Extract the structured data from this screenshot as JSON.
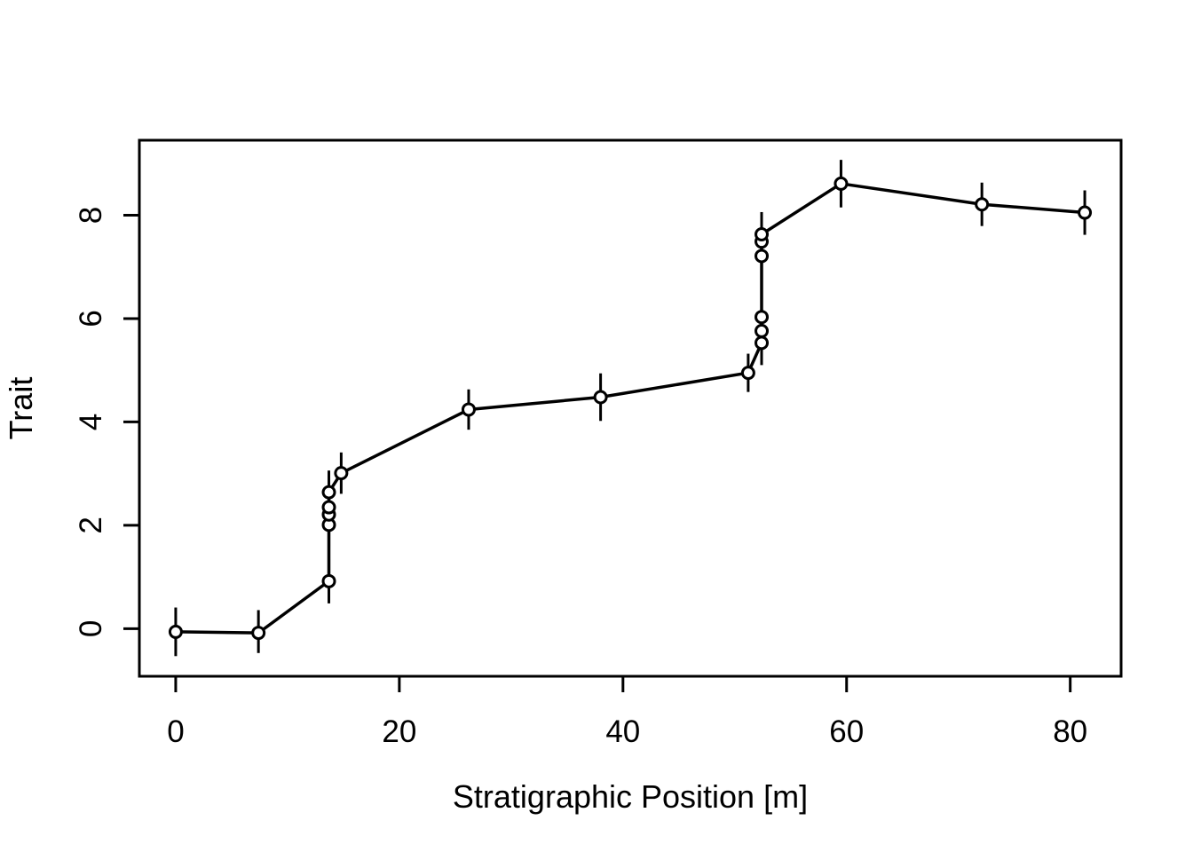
{
  "figure": {
    "background": "#ffffff",
    "foreground": "#000000"
  },
  "chart_data": {
    "type": "line",
    "title": "",
    "xlabel": "Stratigraphic Position [m]",
    "ylabel": "Trait",
    "x_ticks": [
      0,
      20,
      40,
      60,
      80
    ],
    "y_ticks": [
      0,
      2,
      4,
      6,
      8
    ],
    "xlim": [
      -3.25,
      84.55
    ],
    "ylim": [
      -0.92,
      9.45
    ],
    "grid": false,
    "legend": null,
    "marker": "open-circle",
    "error_bars": true,
    "colors": {
      "line": "#000000",
      "marker_stroke": "#000000",
      "marker_fill": "#ffffff",
      "axis": "#000000"
    },
    "series": [
      {
        "name": "Trait",
        "points": [
          {
            "x": 0.0,
            "y": -0.06,
            "y_lo": -0.53,
            "y_hi": 0.41
          },
          {
            "x": 7.4,
            "y": -0.08,
            "y_lo": -0.47,
            "y_hi": 0.36
          },
          {
            "x": 13.7,
            "y": 0.92,
            "y_lo": 0.49,
            "y_hi": 1.35
          },
          {
            "x": 13.7,
            "y": 2.01,
            "y_lo": 1.59,
            "y_hi": 2.43
          },
          {
            "x": 13.7,
            "y": 2.21,
            "y_lo": 1.79,
            "y_hi": 2.63
          },
          {
            "x": 13.7,
            "y": 2.35,
            "y_lo": 1.93,
            "y_hi": 2.77
          },
          {
            "x": 13.7,
            "y": 2.64,
            "y_lo": 2.22,
            "y_hi": 3.06
          },
          {
            "x": 14.8,
            "y": 3.01,
            "y_lo": 2.61,
            "y_hi": 3.41
          },
          {
            "x": 26.2,
            "y": 4.24,
            "y_lo": 3.85,
            "y_hi": 4.63
          },
          {
            "x": 38.0,
            "y": 4.48,
            "y_lo": 4.02,
            "y_hi": 4.94
          },
          {
            "x": 51.2,
            "y": 4.95,
            "y_lo": 4.58,
            "y_hi": 5.32
          },
          {
            "x": 52.4,
            "y": 5.53,
            "y_lo": 5.1,
            "y_hi": 5.95
          },
          {
            "x": 52.4,
            "y": 5.76,
            "y_lo": 5.34,
            "y_hi": 6.18
          },
          {
            "x": 52.4,
            "y": 6.03,
            "y_lo": 5.61,
            "y_hi": 6.45
          },
          {
            "x": 52.4,
            "y": 7.21,
            "y_lo": 6.79,
            "y_hi": 7.63
          },
          {
            "x": 52.4,
            "y": 7.49,
            "y_lo": 7.07,
            "y_hi": 7.91
          },
          {
            "x": 52.4,
            "y": 7.63,
            "y_lo": 7.21,
            "y_hi": 8.06
          },
          {
            "x": 59.5,
            "y": 8.61,
            "y_lo": 8.15,
            "y_hi": 9.07
          },
          {
            "x": 72.1,
            "y": 8.21,
            "y_lo": 7.79,
            "y_hi": 8.63
          },
          {
            "x": 81.3,
            "y": 8.05,
            "y_lo": 7.62,
            "y_hi": 8.48
          }
        ]
      }
    ]
  }
}
